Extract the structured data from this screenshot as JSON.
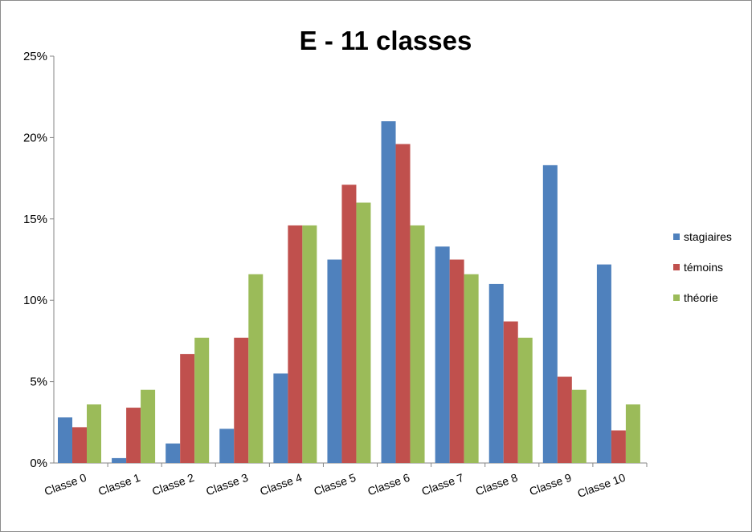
{
  "chart_data": {
    "type": "bar",
    "title": "E - 11 classes",
    "categories": [
      "Classe 0",
      "Classe 1",
      "Classe 2",
      "Classe 3",
      "Classe 4",
      "Classe 5",
      "Classe 6",
      "Classe 7",
      "Classe 8",
      "Classe 9",
      "Classe 10"
    ],
    "series": [
      {
        "name": "stagiaires",
        "color": "#4F81BD",
        "values": [
          2.8,
          0.3,
          1.2,
          2.1,
          5.5,
          12.5,
          21.0,
          13.3,
          11.0,
          18.3,
          12.2
        ]
      },
      {
        "name": "témoins",
        "color": "#C0504D",
        "values": [
          2.2,
          3.4,
          6.7,
          7.7,
          14.6,
          17.1,
          19.6,
          12.5,
          8.7,
          5.3,
          2.0
        ]
      },
      {
        "name": "théorie",
        "color": "#9BBB59",
        "values": [
          3.6,
          4.5,
          7.7,
          11.6,
          14.6,
          16.0,
          14.6,
          11.6,
          7.7,
          4.5,
          3.6
        ]
      }
    ],
    "ylim": [
      0,
      25
    ],
    "yticks": [
      "0%",
      "5%",
      "10%",
      "15%",
      "20%",
      "25%"
    ],
    "ytick_values": [
      0,
      5,
      10,
      15,
      20,
      25
    ],
    "xlabel": "",
    "ylabel": "",
    "legend_position": "right",
    "grid": false
  }
}
